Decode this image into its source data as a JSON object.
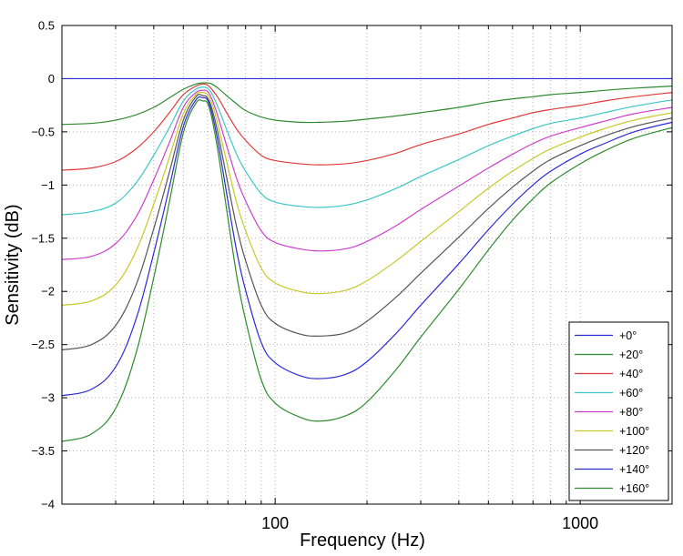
{
  "chart_data": {
    "type": "line",
    "title": "",
    "xlabel": "Frequency (Hz)",
    "ylabel": "Sensitivity (dB)",
    "xscale": "log",
    "xlim": [
      20,
      2000
    ],
    "ylim": [
      -4,
      0.5
    ],
    "yticks": [
      0.5,
      0,
      -0.5,
      -1,
      -1.5,
      -2,
      -2.5,
      -3,
      -3.5,
      -4
    ],
    "ytick_labels": [
      "0.5",
      "0",
      "−0.5",
      "−1",
      "−1.5",
      "−2",
      "−2.5",
      "−3",
      "−3.5",
      "−4"
    ],
    "xticks": [
      100,
      1000
    ],
    "xtick_labels": [
      "100",
      "1000"
    ],
    "grid": true,
    "legend_position": "bottom-right",
    "x": [
      20,
      25,
      30,
      35,
      40,
      45,
      50,
      55,
      58,
      60,
      62,
      65,
      70,
      75,
      80,
      90,
      100,
      120,
      140,
      170,
      200,
      250,
      300,
      400,
      500,
      600,
      700,
      800,
      1000,
      1200,
      1500,
      2000
    ],
    "series": [
      {
        "name": "+0°",
        "color": "#2b2bd6",
        "values": [
          0,
          0,
          0,
          0,
          0,
          0,
          0,
          0,
          0,
          0,
          0,
          0,
          0,
          0,
          0,
          0,
          0,
          0,
          0,
          0,
          0,
          0,
          0,
          0,
          0,
          0,
          0,
          0,
          0,
          0,
          0,
          0
        ]
      },
      {
        "name": "+20°",
        "color": "#2e8b2e",
        "values": [
          -0.43,
          -0.42,
          -0.39,
          -0.34,
          -0.27,
          -0.18,
          -0.1,
          -0.05,
          -0.04,
          -0.04,
          -0.05,
          -0.09,
          -0.17,
          -0.24,
          -0.3,
          -0.36,
          -0.39,
          -0.41,
          -0.41,
          -0.4,
          -0.38,
          -0.35,
          -0.32,
          -0.27,
          -0.22,
          -0.19,
          -0.17,
          -0.15,
          -0.13,
          -0.11,
          -0.09,
          -0.07
        ]
      },
      {
        "name": "+40°",
        "color": "#e03a3a",
        "values": [
          -0.86,
          -0.84,
          -0.78,
          -0.66,
          -0.5,
          -0.32,
          -0.15,
          -0.07,
          -0.05,
          -0.06,
          -0.1,
          -0.18,
          -0.34,
          -0.48,
          -0.58,
          -0.72,
          -0.77,
          -0.8,
          -0.81,
          -0.8,
          -0.77,
          -0.7,
          -0.62,
          -0.52,
          -0.43,
          -0.37,
          -0.32,
          -0.29,
          -0.25,
          -0.21,
          -0.17,
          -0.13
        ]
      },
      {
        "name": "+60°",
        "color": "#3fc6c6",
        "values": [
          -1.28,
          -1.25,
          -1.17,
          -0.98,
          -0.72,
          -0.46,
          -0.21,
          -0.1,
          -0.08,
          -0.09,
          -0.14,
          -0.27,
          -0.51,
          -0.72,
          -0.87,
          -1.08,
          -1.16,
          -1.2,
          -1.21,
          -1.19,
          -1.14,
          -1.03,
          -0.92,
          -0.76,
          -0.63,
          -0.54,
          -0.47,
          -0.42,
          -0.37,
          -0.32,
          -0.26,
          -0.2
        ]
      },
      {
        "name": "+80°",
        "color": "#cc3fcc",
        "values": [
          -1.7,
          -1.67,
          -1.55,
          -1.3,
          -0.95,
          -0.6,
          -0.27,
          -0.13,
          -0.11,
          -0.12,
          -0.19,
          -0.36,
          -0.67,
          -0.95,
          -1.15,
          -1.43,
          -1.54,
          -1.6,
          -1.62,
          -1.6,
          -1.53,
          -1.38,
          -1.23,
          -1.01,
          -0.84,
          -0.71,
          -0.61,
          -0.54,
          -0.46,
          -0.4,
          -0.33,
          -0.27
        ]
      },
      {
        "name": "+100°",
        "color": "#c8c828",
        "values": [
          -2.13,
          -2.09,
          -1.94,
          -1.62,
          -1.18,
          -0.74,
          -0.33,
          -0.15,
          -0.13,
          -0.15,
          -0.23,
          -0.44,
          -0.83,
          -1.18,
          -1.43,
          -1.78,
          -1.92,
          -2.0,
          -2.02,
          -1.99,
          -1.9,
          -1.71,
          -1.53,
          -1.25,
          -1.03,
          -0.87,
          -0.75,
          -0.66,
          -0.55,
          -0.47,
          -0.39,
          -0.32
        ]
      },
      {
        "name": "+120°",
        "color": "#555555",
        "values": [
          -2.55,
          -2.5,
          -2.32,
          -1.94,
          -1.41,
          -0.88,
          -0.39,
          -0.17,
          -0.16,
          -0.18,
          -0.28,
          -0.52,
          -0.99,
          -1.41,
          -1.71,
          -2.13,
          -2.3,
          -2.4,
          -2.42,
          -2.39,
          -2.28,
          -2.05,
          -1.83,
          -1.49,
          -1.22,
          -1.02,
          -0.87,
          -0.76,
          -0.63,
          -0.54,
          -0.45,
          -0.37
        ]
      },
      {
        "name": "+140°",
        "color": "#2b2bd6",
        "values": [
          -2.98,
          -2.92,
          -2.71,
          -2.26,
          -1.64,
          -1.02,
          -0.45,
          -0.2,
          -0.18,
          -0.2,
          -0.32,
          -0.6,
          -1.15,
          -1.64,
          -1.99,
          -2.48,
          -2.67,
          -2.79,
          -2.82,
          -2.78,
          -2.66,
          -2.39,
          -2.13,
          -1.74,
          -1.42,
          -1.18,
          -1.0,
          -0.87,
          -0.71,
          -0.61,
          -0.5,
          -0.41
        ]
      },
      {
        "name": "+160°",
        "color": "#2e8b2e",
        "values": [
          -3.41,
          -3.34,
          -3.1,
          -2.58,
          -1.87,
          -1.16,
          -0.51,
          -0.23,
          -0.21,
          -0.23,
          -0.37,
          -0.69,
          -1.31,
          -1.87,
          -2.27,
          -2.83,
          -3.05,
          -3.18,
          -3.22,
          -3.17,
          -3.04,
          -2.73,
          -2.43,
          -1.98,
          -1.61,
          -1.33,
          -1.13,
          -0.98,
          -0.8,
          -0.68,
          -0.56,
          -0.46
        ]
      }
    ]
  }
}
